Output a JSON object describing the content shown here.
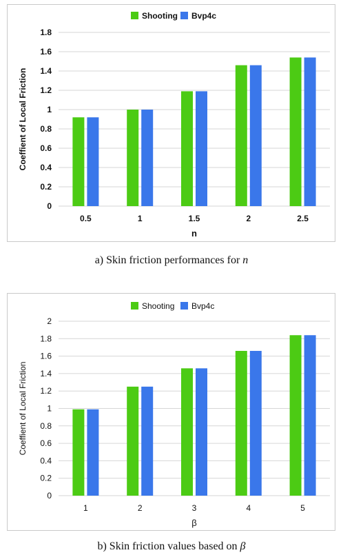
{
  "colors": {
    "shooting": "#4ccb14",
    "bvp4c": "#3a77ea",
    "grid": "#d6d6d6",
    "text": "#111111"
  },
  "chart_data": [
    {
      "type": "bar",
      "categories": [
        "0.5",
        "1",
        "1.5",
        "2",
        "2.5"
      ],
      "series": [
        {
          "name": "Shooting",
          "values": [
            0.92,
            1.0,
            1.19,
            1.46,
            1.54
          ]
        },
        {
          "name": "Bvp4c",
          "values": [
            0.92,
            1.0,
            1.19,
            1.46,
            1.54
          ]
        }
      ],
      "yticks": [
        "0",
        "0.2",
        "0.4",
        "0.6",
        "0.8",
        "1",
        "1.2",
        "1.4",
        "1.6",
        "1.8"
      ],
      "ylim": [
        0,
        1.8
      ],
      "xlabel": "n",
      "ylabel": "Coeffient of Local Friction",
      "legend_position": "top",
      "grid": true,
      "bold_text": true
    },
    {
      "type": "bar",
      "categories": [
        "1",
        "2",
        "3",
        "4",
        "5"
      ],
      "series": [
        {
          "name": "Shooting",
          "values": [
            0.99,
            1.25,
            1.46,
            1.66,
            1.84
          ]
        },
        {
          "name": "Bvp4c",
          "values": [
            0.99,
            1.25,
            1.46,
            1.66,
            1.84
          ]
        }
      ],
      "yticks": [
        "0",
        "0.2",
        "0.4",
        "0.6",
        "0.8",
        "1",
        "1.2",
        "1.4",
        "1.6",
        "1.8",
        "2"
      ],
      "ylim": [
        0,
        2
      ],
      "xlabel": "β",
      "ylabel": "Coeffient of Local Friction",
      "legend_position": "top",
      "grid": true,
      "bold_text": false
    }
  ],
  "captions": {
    "a": {
      "prefix": "a)   Skin friction performances for ",
      "var": "n"
    },
    "b": {
      "prefix": "b)   Skin friction values based on ",
      "var": "β"
    }
  }
}
